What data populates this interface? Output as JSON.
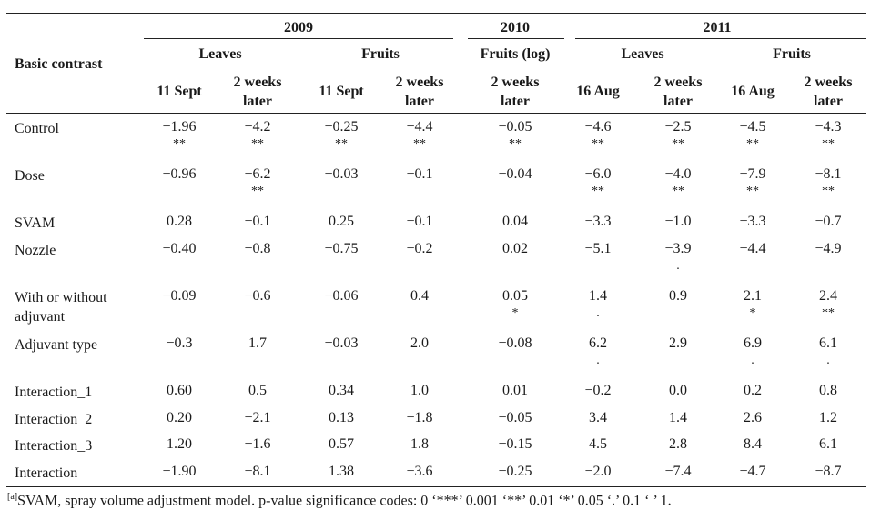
{
  "table": {
    "stub_header": "Basic contrast",
    "years": [
      "2009",
      "2010",
      "2011"
    ],
    "groups": [
      "Leaves",
      "Fruits",
      "Fruits (log)",
      "Leaves",
      "Fruits"
    ],
    "subheaders": [
      "11 Sept",
      "2 weeks later",
      "11 Sept",
      "2 weeks later",
      "2 weeks later",
      "16 Aug",
      "2 weeks later",
      "16 Aug",
      "2 weeks later"
    ],
    "rows": [
      {
        "label": "Control",
        "values": [
          "−1.96",
          "−4.2",
          "−0.25",
          "−4.4",
          "−0.05",
          "−4.6",
          "−2.5",
          "−4.5",
          "−4.3"
        ],
        "sig": [
          "**",
          "**",
          "**",
          "**",
          "**",
          "**",
          "**",
          "**",
          "**"
        ]
      },
      {
        "label": "Dose",
        "values": [
          "−0.96",
          "−6.2",
          "−0.03",
          "−0.1",
          "−0.04",
          "−6.0",
          "−4.0",
          "−7.9",
          "−8.1"
        ],
        "sig": [
          "",
          "**",
          "",
          "",
          "",
          "**",
          "**",
          "**",
          "**"
        ]
      },
      {
        "label": "SVAM",
        "values": [
          "0.28",
          "−0.1",
          "0.25",
          "−0.1",
          "0.04",
          "−3.3",
          "−1.0",
          "−3.3",
          "−0.7"
        ],
        "sig": [
          "",
          "",
          "",
          "",
          "",
          "",
          "",
          "",
          ""
        ]
      },
      {
        "label": "Nozzle",
        "values": [
          "−0.40",
          "−0.8",
          "−0.75",
          "−0.2",
          "0.02",
          "−5.1",
          "−3.9",
          "−4.4",
          "−4.9"
        ],
        "sig": [
          "",
          "",
          "",
          "",
          "",
          "",
          ".",
          "",
          ""
        ]
      },
      {
        "label": "With or without adjuvant",
        "values": [
          "−0.09",
          "−0.6",
          "−0.06",
          "0.4",
          "0.05",
          "1.4",
          "0.9",
          "2.1",
          "2.4"
        ],
        "sig": [
          "",
          "",
          "",
          "",
          "*",
          ".",
          "",
          "*",
          "**"
        ]
      },
      {
        "label": "Adjuvant type",
        "values": [
          "−0.3",
          "1.7",
          "−0.03",
          "2.0",
          "−0.08",
          "6.2",
          "2.9",
          "6.9",
          "6.1"
        ],
        "sig": [
          "",
          "",
          "",
          "",
          "",
          ".",
          "",
          ".",
          "."
        ]
      },
      {
        "label": "Interaction_1",
        "values": [
          "0.60",
          "0.5",
          "0.34",
          "1.0",
          "0.01",
          "−0.2",
          "0.0",
          "0.2",
          "0.8"
        ],
        "sig": [
          "",
          "",
          "",
          "",
          "",
          "",
          "",
          "",
          ""
        ]
      },
      {
        "label": "Interaction_2",
        "values": [
          "0.20",
          "−2.1",
          "0.13",
          "−1.8",
          "−0.05",
          "3.4",
          "1.4",
          "2.6",
          "1.2"
        ],
        "sig": [
          "",
          "",
          "",
          "",
          "",
          "",
          "",
          "",
          ""
        ]
      },
      {
        "label": "Interaction_3",
        "values": [
          "1.20",
          "−1.6",
          "0.57",
          "1.8",
          "−0.15",
          "4.5",
          "2.8",
          "8.4",
          "6.1"
        ],
        "sig": [
          "",
          "",
          "",
          "",
          "",
          "",
          "",
          "",
          ""
        ]
      },
      {
        "label": "Interaction",
        "values": [
          "−1.90",
          "−8.1",
          "1.38",
          "−3.6",
          "−0.25",
          "−2.0",
          "−7.4",
          "−4.7",
          "−8.7"
        ],
        "sig": [
          "",
          "",
          "",
          "",
          "",
          "",
          "",
          "",
          ""
        ]
      }
    ],
    "footnote_marker": "[a]",
    "footnote": "SVAM, spray volume adjustment model. p-value significance codes: 0 ‘***’ 0.001 ‘**’ 0.01 ‘*’ 0.05 ‘.’ 0.1 ‘ ’ 1."
  }
}
